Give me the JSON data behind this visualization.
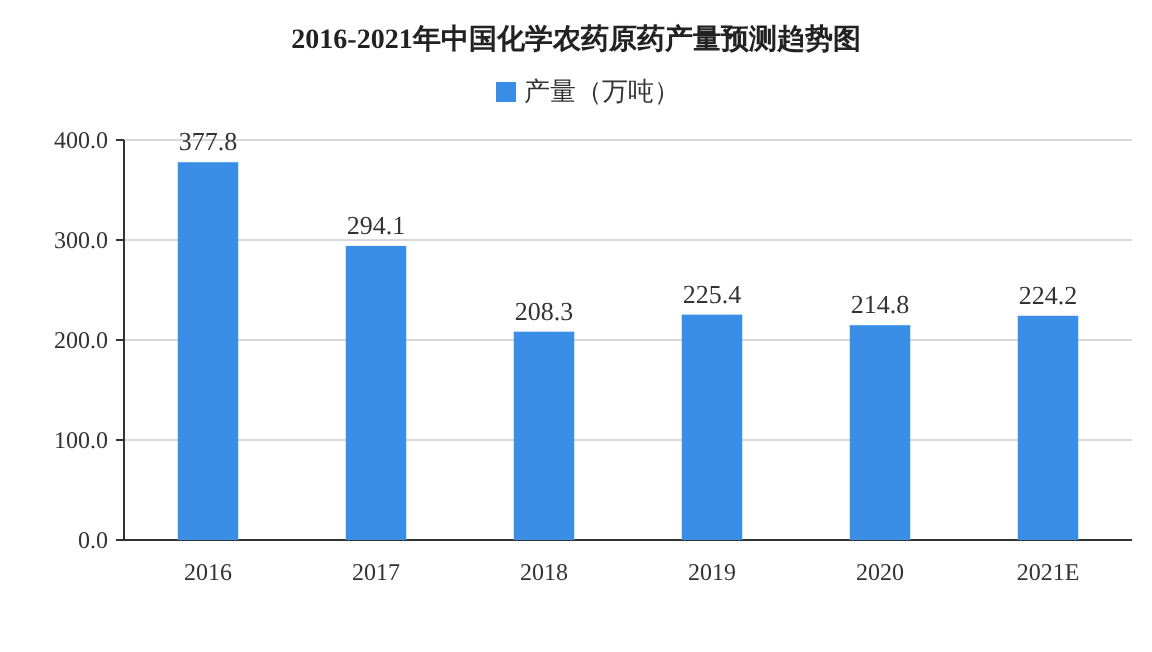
{
  "chart_data": {
    "type": "bar",
    "title": "2016-2021年中国化学农药原药产量预测趋势图",
    "categories": [
      "2016",
      "2017",
      "2018",
      "2019",
      "2020",
      "2021E"
    ],
    "series": [
      {
        "name": "产量（万吨）",
        "color": "#3a8ee6",
        "values": [
          377.8,
          294.1,
          208.3,
          225.4,
          214.8,
          224.2
        ]
      }
    ],
    "ylim": [
      0,
      400
    ],
    "yticks": [
      {
        "value": 0,
        "label": "0.0"
      },
      {
        "value": 100,
        "label": "100.0"
      },
      {
        "value": 200,
        "label": "200.0"
      },
      {
        "value": 300,
        "label": "300.0"
      },
      {
        "value": 400,
        "label": "400.0"
      }
    ],
    "grid": "y",
    "legend": "top",
    "data_labels": true
  }
}
